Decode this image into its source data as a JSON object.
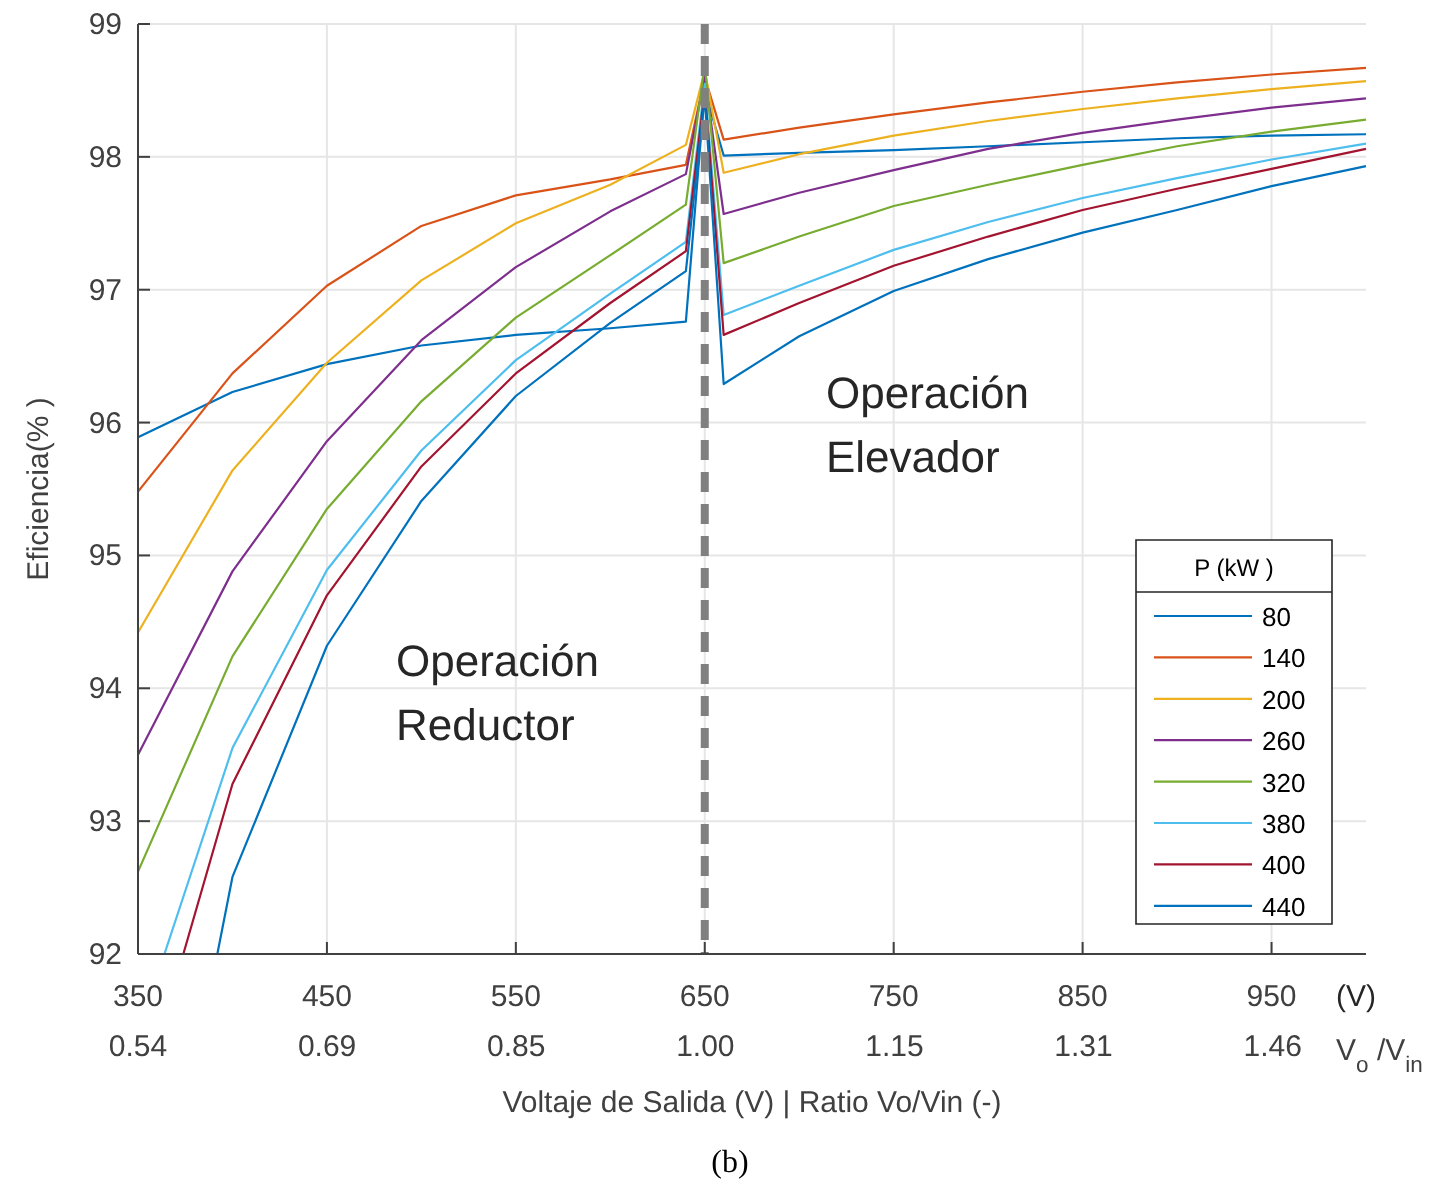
{
  "chart_data": {
    "type": "line",
    "xlabel": "Voltaje de Salida (V)  |  Ratio Vo/Vin (-)",
    "ylabel": "Eficiencia(%  )",
    "x2label": "V$_{o}$/V$_{in}$",
    "legend_title": "P (kW )",
    "legend": "right",
    "grid": true,
    "line_style": "solid",
    "marker": "none",
    "xlim": [
      350,
      1000
    ],
    "xticks": [
      350,
      450,
      550,
      650,
      750,
      850,
      950
    ],
    "x2lim": [
      0.538,
      1.538
    ],
    "x2ticks": [
      {
        "value": 0.538,
        "label": "0.54"
      },
      {
        "value": 0.692,
        "label": "0.69"
      },
      {
        "value": 0.846,
        "label": "0.85"
      },
      {
        "value": 1.0,
        "label": "1.00"
      },
      {
        "value": 1.154,
        "label": "1.15"
      },
      {
        "value": 1.308,
        "label": "1.31"
      },
      {
        "value": 1.462,
        "label": "1.46"
      }
    ],
    "ylim": [
      92,
      99
    ],
    "yticks": [
      92,
      93,
      94,
      95,
      96,
      97,
      98,
      99
    ],
    "x": [
      350,
      400,
      450,
      500,
      550,
      600,
      640,
      650,
      660,
      700,
      750,
      800,
      850,
      900,
      950,
      1000
    ],
    "series": [
      {
        "name": "80",
        "color": "#0072bd",
        "values": [
          95.89,
          96.23,
          96.44,
          96.58,
          96.66,
          96.71,
          96.76,
          98.5,
          98.01,
          98.03,
          98.05,
          98.08,
          98.11,
          98.14,
          98.16,
          98.17
        ]
      },
      {
        "name": "140",
        "color": "#d95319",
        "values": [
          95.48,
          96.37,
          97.03,
          97.48,
          97.71,
          97.83,
          97.94,
          98.6,
          98.13,
          98.22,
          98.32,
          98.41,
          98.49,
          98.56,
          98.62,
          98.67
        ]
      },
      {
        "name": "200",
        "color": "#edb120",
        "values": [
          94.42,
          95.64,
          96.45,
          97.07,
          97.5,
          97.79,
          98.09,
          98.65,
          97.88,
          98.02,
          98.16,
          98.27,
          98.36,
          98.44,
          98.51,
          98.57
        ]
      },
      {
        "name": "260",
        "color": "#7e2f8e",
        "values": [
          93.5,
          94.88,
          95.86,
          96.62,
          97.17,
          97.59,
          97.87,
          98.6,
          97.57,
          97.73,
          97.9,
          98.06,
          98.18,
          98.28,
          98.37,
          98.44
        ]
      },
      {
        "name": "320",
        "color": "#77ac30",
        "values": [
          92.62,
          94.24,
          95.35,
          96.16,
          96.79,
          97.26,
          97.64,
          98.7,
          97.2,
          97.4,
          97.63,
          97.79,
          97.94,
          98.08,
          98.19,
          98.28
        ]
      },
      {
        "name": "380",
        "color": "#4dbeee",
        "x": [
          364,
          400,
          450,
          500,
          550,
          600,
          640,
          650,
          660,
          700,
          750,
          800,
          850,
          900,
          950,
          1000
        ],
        "values": [
          92,
          93.55,
          94.89,
          95.79,
          96.47,
          96.97,
          97.36,
          98.55,
          96.81,
          97.03,
          97.3,
          97.51,
          97.69,
          97.84,
          97.98,
          98.1
        ]
      },
      {
        "name": "400",
        "color": "#a2142f",
        "x": [
          374,
          400,
          450,
          500,
          550,
          600,
          640,
          650,
          660,
          700,
          750,
          800,
          850,
          900,
          950,
          1000
        ],
        "values": [
          92,
          93.28,
          94.7,
          95.67,
          96.37,
          96.9,
          97.29,
          98.5,
          96.66,
          96.9,
          97.18,
          97.4,
          97.6,
          97.76,
          97.91,
          98.06
        ]
      },
      {
        "name": "440",
        "color": "#0072bd",
        "x": [
          392,
          400,
          450,
          500,
          550,
          600,
          640,
          650,
          660,
          700,
          750,
          800,
          850,
          900,
          950,
          1000
        ],
        "values": [
          92,
          92.58,
          94.32,
          95.41,
          96.2,
          96.75,
          97.14,
          98.45,
          96.29,
          96.65,
          96.99,
          97.23,
          97.43,
          97.6,
          97.78,
          97.93
        ]
      }
    ],
    "ref_lines": [
      {
        "axis": "x",
        "value": 650,
        "color": "#808080",
        "line_style": "dashed"
      }
    ],
    "annotations": [
      "Operación\nReductor",
      "Operación\nElevador",
      "(V)",
      "(b)"
    ]
  }
}
